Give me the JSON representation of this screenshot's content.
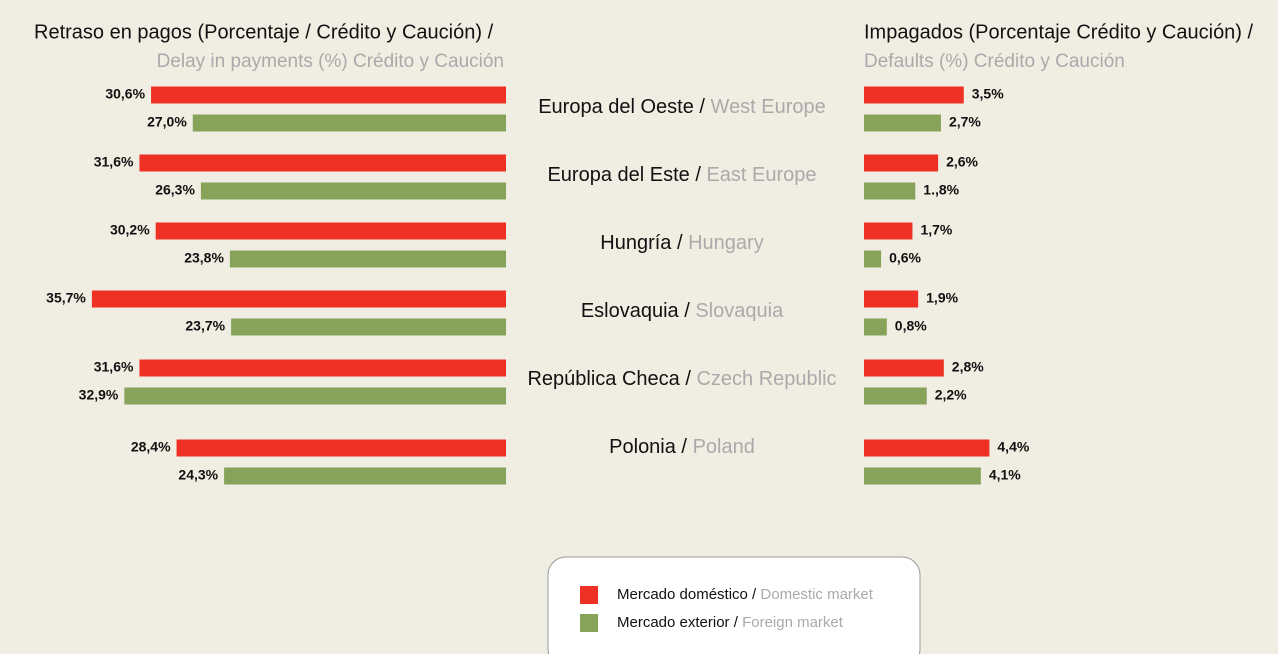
{
  "chart_data": [
    {
      "type": "bar",
      "title": "Retraso en pagos (Porcentaje / Crédito y Caución) /",
      "subtitle": "Delay in payments (%) Crédito y Caución",
      "categories": [
        {
          "es": "Europa del Oeste /",
          "en": "West Europe"
        },
        {
          "es": "Europa del Este /",
          "en": "East Europe"
        },
        {
          "es": "Hungría /",
          "en": "Hungary"
        },
        {
          "es": "Eslovaquia /",
          "en": "Slovaquia"
        },
        {
          "es": "República Checa /",
          "en": "Czech Republic"
        },
        {
          "es": "Polonia /",
          "en": "Poland"
        }
      ],
      "xlim": [
        0,
        40
      ],
      "series": [
        {
          "name": "Mercado doméstico /",
          "name_en": "Domestic market",
          "color": "#ee3124",
          "values": [
            30.6,
            31.6,
            30.2,
            35.7,
            31.6,
            28.4
          ],
          "value_labels": [
            "30,6%",
            "31,6%",
            "30,2%",
            "35,7%",
            "31,6%",
            "28,4%"
          ]
        },
        {
          "name": "Mercado exterior /",
          "name_en": "Foreign market",
          "color": "#87a35a",
          "values": [
            27.0,
            26.3,
            23.8,
            23.7,
            32.9,
            24.3
          ],
          "value_labels": [
            "27,0%",
            "26,3%",
            "23,8%",
            "23,7%",
            "32,9%",
            "24,3%"
          ]
        }
      ]
    },
    {
      "type": "bar",
      "title": "Impagados (Porcentaje Crédito y Caución)  /",
      "subtitle": "Defaults (%) Crédito y Caución",
      "xlim": [
        0,
        10
      ],
      "series": [
        {
          "color": "#ee3124",
          "values": [
            3.5,
            2.6,
            1.7,
            1.9,
            2.8,
            4.4
          ],
          "value_labels": [
            "3,5%",
            "2,6%",
            "1,7%",
            "1,9%",
            "2,8%",
            "4,4%"
          ]
        },
        {
          "color": "#87a35a",
          "values": [
            2.7,
            1.8,
            0.6,
            0.8,
            2.2,
            4.1
          ],
          "value_labels": [
            "2,7%",
            "1.,8%",
            "0,6%",
            "0,8%",
            "2,2%",
            "4,1%"
          ]
        }
      ]
    }
  ]
}
